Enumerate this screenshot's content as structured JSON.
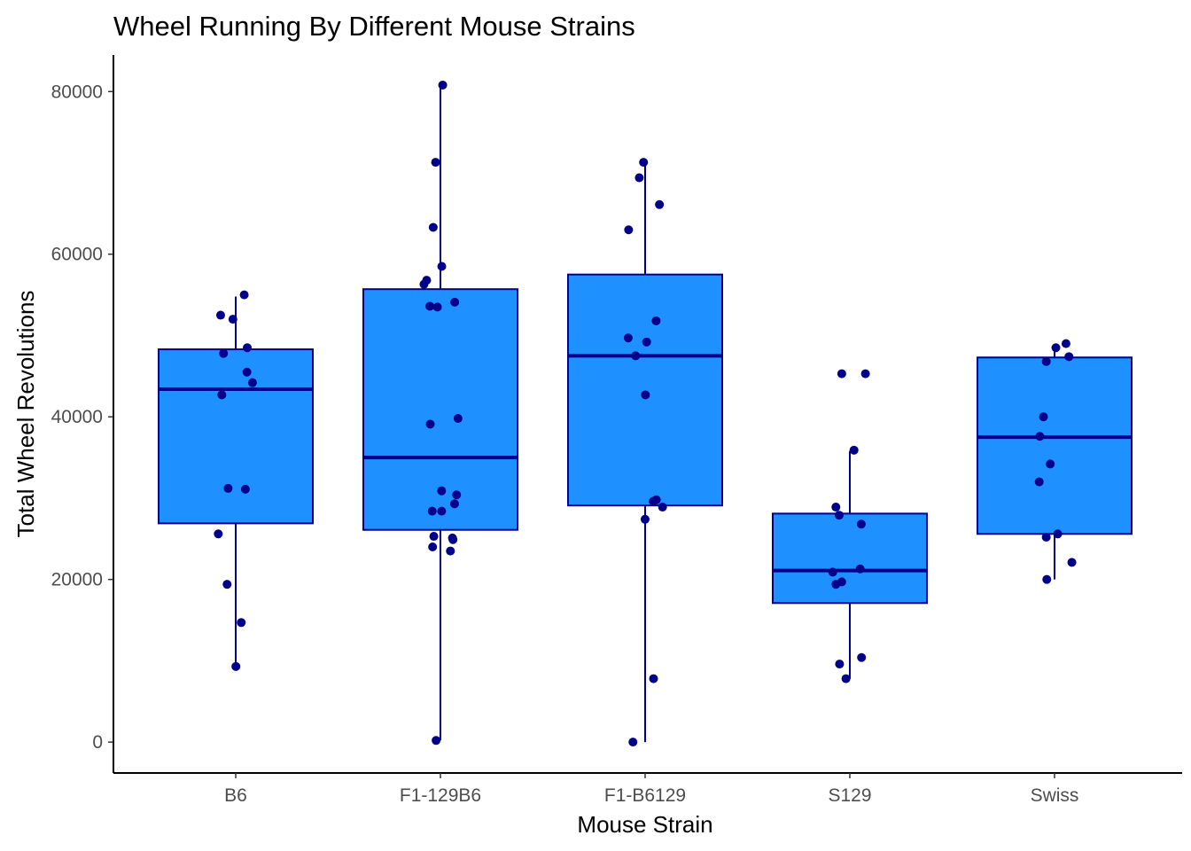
{
  "chart_data": {
    "type": "box",
    "title": "Wheel Running By Different Mouse Strains",
    "xlabel": "Mouse Strain",
    "ylabel": "Total Wheel Revolutions",
    "ylim": [
      -3800,
      84500
    ],
    "yticks": [
      0,
      20000,
      40000,
      60000,
      80000
    ],
    "grid": false,
    "legend": "none",
    "colors": {
      "box_fill": "#1E90FF",
      "box_line": "#00008B",
      "point": "#00008B"
    },
    "categories": [
      "B6",
      "F1-129B6",
      "F1-B6129",
      "S129",
      "Swiss"
    ],
    "boxes": [
      {
        "category": "B6",
        "min": 9300,
        "q1": 26900,
        "median": 43400,
        "q3": 48300,
        "max": 54800
      },
      {
        "category": "F1-129B6",
        "min": 200,
        "q1": 26100,
        "median": 35000,
        "q3": 55700,
        "max": 80700
      },
      {
        "category": "F1-B6129",
        "min": 0,
        "q1": 29100,
        "median": 47500,
        "q3": 57500,
        "max": 71200
      },
      {
        "category": "S129",
        "min": 7800,
        "q1": 17100,
        "median": 21100,
        "q3": 28100,
        "max": 35800
      },
      {
        "category": "Swiss",
        "min": 20000,
        "q1": 25600,
        "median": 37500,
        "q3": 47300,
        "max": 48800
      }
    ],
    "points": [
      {
        "category": "B6",
        "values": [
          55000,
          52500,
          52000,
          48500,
          47800,
          45500,
          42700,
          44200,
          31200,
          31100,
          25600,
          19400,
          14700,
          9300
        ]
      },
      {
        "category": "F1-129B6",
        "values": [
          80800,
          71300,
          63300,
          58500,
          56800,
          56300,
          54100,
          53600,
          53500,
          39800,
          39100,
          30900,
          30400,
          29300,
          28400,
          28400,
          25100,
          25300,
          24900,
          24000,
          23500,
          200
        ]
      },
      {
        "category": "F1-B6129",
        "values": [
          71300,
          69400,
          66100,
          63000,
          51800,
          49700,
          49200,
          47500,
          42700,
          29800,
          29600,
          28900,
          27400,
          7800,
          0
        ]
      },
      {
        "category": "S129",
        "values": [
          45300,
          45300,
          35900,
          28900,
          27900,
          26800,
          21300,
          20900,
          19400,
          19700,
          10400,
          9600,
          7800
        ]
      },
      {
        "category": "Swiss",
        "values": [
          49000,
          48500,
          47400,
          46800,
          40000,
          37600,
          34200,
          32000,
          25600,
          25200,
          22100,
          20000
        ]
      }
    ]
  }
}
